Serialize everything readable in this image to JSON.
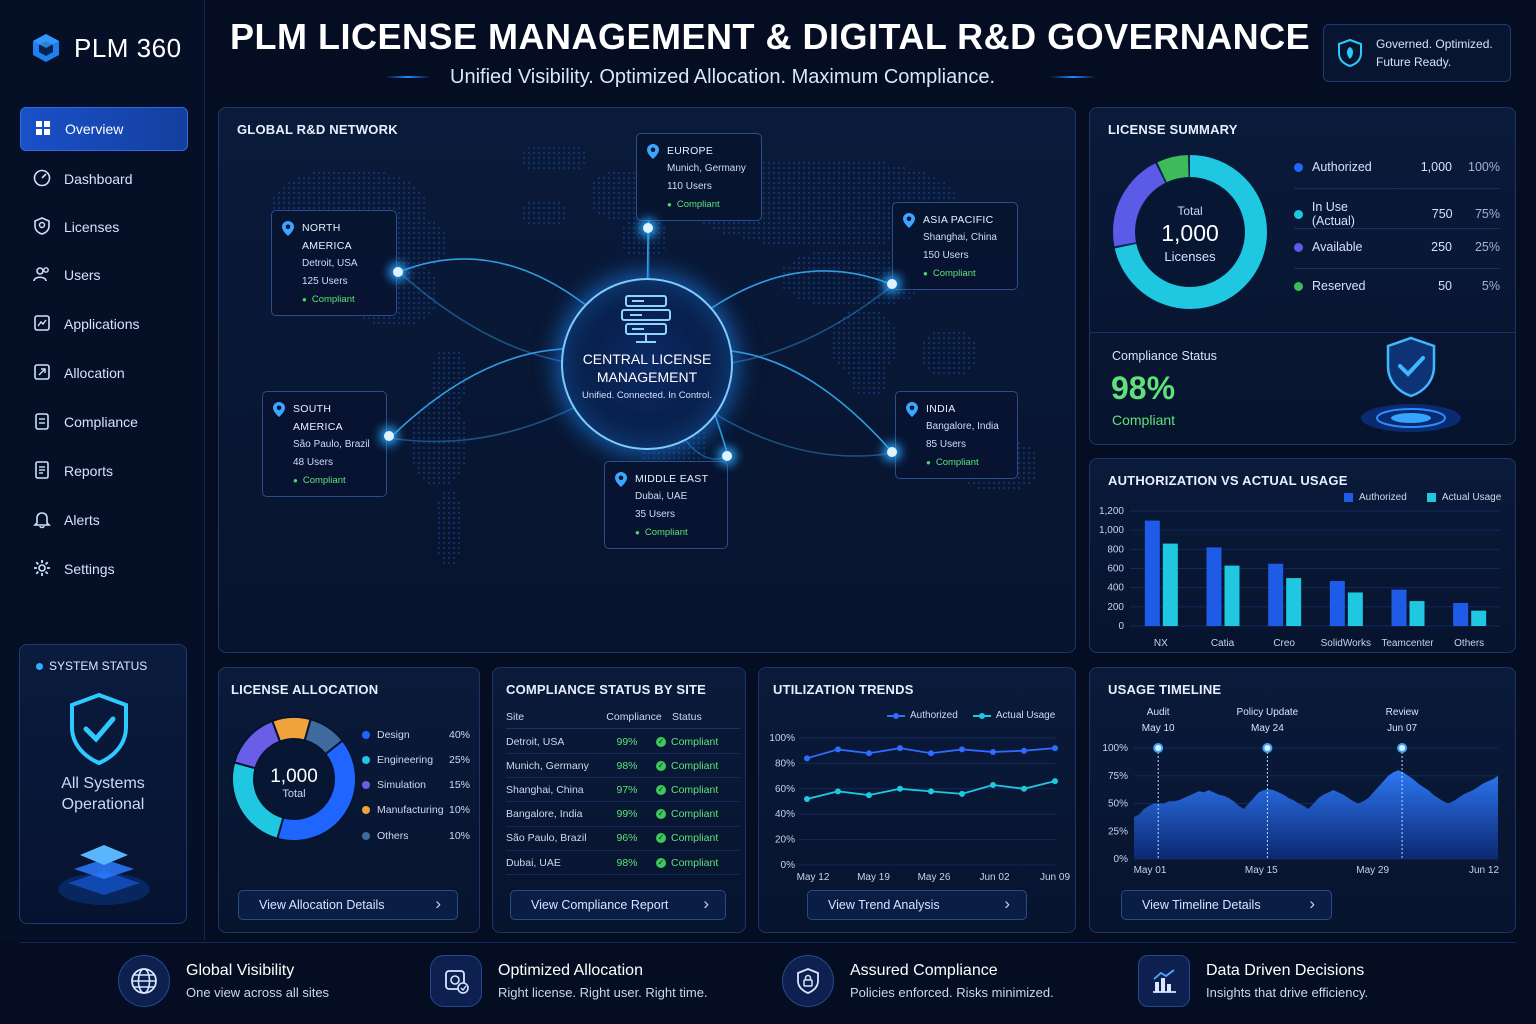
{
  "app": {
    "name": "PLM 360"
  },
  "header": {
    "title": "PLM LICENSE MANAGEMENT & DIGITAL R&D GOVERNANCE",
    "subtitle": "Unified Visibility. Optimized Allocation. Maximum Compliance.",
    "badge_line1": "Governed. Optimized.",
    "badge_line2": "Future Ready."
  },
  "sidebar": {
    "items": [
      {
        "label": "Overview",
        "icon": "grid-icon"
      },
      {
        "label": "Dashboard",
        "icon": "gauge-icon"
      },
      {
        "label": "Licenses",
        "icon": "license-icon"
      },
      {
        "label": "Users",
        "icon": "users-icon"
      },
      {
        "label": "Applications",
        "icon": "apps-icon"
      },
      {
        "label": "Allocation",
        "icon": "allocation-icon"
      },
      {
        "label": "Compliance",
        "icon": "clipboard-icon"
      },
      {
        "label": "Reports",
        "icon": "report-icon"
      },
      {
        "label": "Alerts",
        "icon": "bell-icon"
      },
      {
        "label": "Settings",
        "icon": "gear-icon"
      }
    ],
    "system_status": {
      "title": "SYSTEM STATUS",
      "line1": "All Systems",
      "line2": "Operational"
    }
  },
  "network": {
    "title": "GLOBAL R&D NETWORK",
    "center_title1": "CENTRAL LICENSE",
    "center_title2": "MANAGEMENT",
    "center_sub": "Unified. Connected. In Control.",
    "sites": [
      {
        "region": "NORTH AMERICA",
        "city": "Detroit, USA",
        "users": "125 Users",
        "status": "Compliant"
      },
      {
        "region": "EUROPE",
        "city": "Munich, Germany",
        "users": "110 Users",
        "status": "Compliant"
      },
      {
        "region": "ASIA PACIFIC",
        "city": "Shanghai, China",
        "users": "150 Users",
        "status": "Compliant"
      },
      {
        "region": "SOUTH AMERICA",
        "city": "São Paulo, Brazil",
        "users": "48 Users",
        "status": "Compliant"
      },
      {
        "region": "MIDDLE EAST",
        "city": "Dubai, UAE",
        "users": "35 Users",
        "status": "Compliant"
      },
      {
        "region": "INDIA",
        "city": "Bangalore, India",
        "users": "85 Users",
        "status": "Compliant"
      }
    ]
  },
  "license_summary": {
    "title": "LICENSE SUMMARY",
    "total_label": "Total",
    "total_value": "1,000",
    "total_unit": "Licenses",
    "rows": [
      {
        "label": "Authorized",
        "value": "1,000",
        "pct": "100%",
        "color": "#1e66ff"
      },
      {
        "label": "In Use (Actual)",
        "value": "750",
        "pct": "75%",
        "color": "#1fc8e0"
      },
      {
        "label": "Available",
        "value": "250",
        "pct": "25%",
        "color": "#5a5ce8"
      },
      {
        "label": "Reserved",
        "value": "50",
        "pct": "5%",
        "color": "#3dbb5a"
      }
    ],
    "compliance_label": "Compliance Status",
    "compliance_value": "98%",
    "compliance_text": "Compliant"
  },
  "auth_usage": {
    "title": "AUTHORIZATION VS ACTUAL USAGE",
    "legend_authorized": "Authorized",
    "legend_actual": "Actual Usage",
    "y_ticks": [
      "1,200",
      "1,000",
      "800",
      "600",
      "400",
      "200",
      "0"
    ]
  },
  "allocation": {
    "title": "LICENSE ALLOCATION",
    "total_value": "1,000",
    "total_label": "Total",
    "items": [
      {
        "label": "Design",
        "pct": "40%",
        "color": "#1e66ff"
      },
      {
        "label": "Engineering",
        "pct": "25%",
        "color": "#1fc8e0"
      },
      {
        "label": "Simulation",
        "pct": "15%",
        "color": "#6a5ee8"
      },
      {
        "label": "Manufacturing",
        "pct": "10%",
        "color": "#f0a23c"
      },
      {
        "label": "Others",
        "pct": "10%",
        "color": "#3e6a9e"
      }
    ],
    "button": "View Allocation Details"
  },
  "compliance_sites": {
    "title": "COMPLIANCE STATUS BY SITE",
    "headers": [
      "Site",
      "Compliance",
      "Status"
    ],
    "rows": [
      {
        "site": "Detroit, USA",
        "compliance": "99%",
        "status": "Compliant"
      },
      {
        "site": "Munich, Germany",
        "compliance": "98%",
        "status": "Compliant"
      },
      {
        "site": "Shanghai, China",
        "compliance": "97%",
        "status": "Compliant"
      },
      {
        "site": "Bangalore, India",
        "compliance": "99%",
        "status": "Compliant"
      },
      {
        "site": "São Paulo, Brazil",
        "compliance": "96%",
        "status": "Compliant"
      },
      {
        "site": "Dubai, UAE",
        "compliance": "98%",
        "status": "Compliant"
      }
    ],
    "button": "View Compliance Report"
  },
  "utilization": {
    "title": "UTILIZATION TRENDS",
    "legend_authorized": "Authorized",
    "legend_actual": "Actual Usage",
    "y_ticks": [
      "100%",
      "80%",
      "60%",
      "40%",
      "20%",
      "0%"
    ],
    "x_ticks": [
      "May 12",
      "May 19",
      "May 26",
      "Jun 02",
      "Jun 09"
    ],
    "button": "View Trend Analysis"
  },
  "timeline": {
    "title": "USAGE TIMELINE",
    "events": [
      {
        "name": "Audit",
        "date": "May 10"
      },
      {
        "name": "Policy Update",
        "date": "May 24"
      },
      {
        "name": "Review",
        "date": "Jun 07"
      }
    ],
    "y_ticks": [
      "100%",
      "75%",
      "50%",
      "25%",
      "0%"
    ],
    "x_ticks": [
      "May 01",
      "May 15",
      "May 29",
      "Jun 12"
    ],
    "button": "View Timeline Details"
  },
  "footer": [
    {
      "title": "Global Visibility",
      "sub": "One view across all sites",
      "icon": "globe-icon"
    },
    {
      "title": "Optimized Allocation",
      "sub": "Right license. Right user. Right time.",
      "icon": "optimize-icon"
    },
    {
      "title": "Assured Compliance",
      "sub": "Policies enforced. Risks minimized.",
      "icon": "shield-lock-icon"
    },
    {
      "title": "Data Driven Decisions",
      "sub": "Insights that drive efficiency.",
      "icon": "bar-chart-icon"
    }
  ],
  "chart_data": [
    {
      "type": "bar",
      "title": "AUTHORIZATION VS ACTUAL USAGE",
      "categories": [
        "NX",
        "Catia",
        "Creo",
        "SolidWorks",
        "Teamcenter",
        "Others"
      ],
      "series": [
        {
          "name": "Authorized",
          "values": [
            1100,
            820,
            650,
            470,
            380,
            240
          ],
          "color": "#1e5ce8"
        },
        {
          "name": "Actual Usage",
          "values": [
            860,
            630,
            500,
            350,
            260,
            160
          ],
          "color": "#1fc8e0"
        }
      ],
      "ylim": [
        0,
        1200
      ]
    },
    {
      "type": "line",
      "title": "UTILIZATION TRENDS",
      "x": [
        "May 12",
        "",
        "May 19",
        "",
        "May 26",
        "",
        "Jun 02",
        "",
        "Jun 09"
      ],
      "series": [
        {
          "name": "Authorized",
          "values": [
            84,
            91,
            88,
            92,
            88,
            91,
            89,
            90,
            92
          ],
          "color": "#2f6bff"
        },
        {
          "name": "Actual Usage",
          "values": [
            52,
            58,
            55,
            60,
            58,
            56,
            63,
            60,
            66
          ],
          "color": "#1fc8e0"
        }
      ],
      "ylim": [
        0,
        100
      ]
    },
    {
      "type": "area",
      "title": "USAGE TIMELINE",
      "values": [
        38,
        40,
        45,
        48,
        50,
        50,
        50,
        52,
        52,
        53,
        55,
        57,
        59,
        61,
        60,
        62,
        60,
        58,
        57,
        55,
        52,
        48,
        45,
        50,
        55,
        60,
        62,
        63,
        62,
        60,
        58,
        55,
        53,
        50,
        48,
        45,
        50,
        55,
        58,
        60,
        62,
        60,
        58,
        55,
        52,
        50,
        52,
        55,
        60,
        65,
        70,
        75,
        78,
        80,
        78,
        75,
        72,
        68,
        65,
        62,
        58,
        55,
        52,
        50,
        52,
        55,
        58,
        60,
        62,
        65,
        68,
        70,
        72,
        75
      ],
      "events": [
        {
          "name": "Audit",
          "date": "May 10",
          "x": 0.05
        },
        {
          "name": "Policy Update",
          "date": "May 24",
          "x": 0.35
        },
        {
          "name": "Review",
          "date": "Jun 07",
          "x": 0.72
        }
      ],
      "ylim": [
        0,
        100
      ]
    }
  ]
}
